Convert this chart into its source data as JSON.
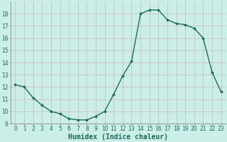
{
  "x": [
    0,
    1,
    2,
    3,
    4,
    5,
    6,
    7,
    8,
    9,
    10,
    11,
    12,
    13,
    14,
    15,
    16,
    17,
    18,
    19,
    20,
    21,
    22,
    23
  ],
  "y": [
    12.2,
    12.0,
    11.1,
    10.5,
    10.0,
    9.8,
    9.4,
    9.3,
    9.3,
    9.6,
    10.0,
    11.4,
    12.9,
    14.1,
    18.0,
    18.3,
    18.3,
    17.5,
    17.2,
    17.1,
    16.8,
    16.0,
    13.2,
    11.6
  ],
  "xlabel": "Humidex (Indice chaleur)",
  "ylabel": "",
  "xlim": [
    -0.5,
    23.5
  ],
  "ylim": [
    9,
    19
  ],
  "yticks": [
    9,
    10,
    11,
    12,
    13,
    14,
    15,
    16,
    17,
    18
  ],
  "xticks": [
    0,
    1,
    2,
    3,
    4,
    5,
    6,
    7,
    8,
    9,
    10,
    11,
    12,
    13,
    14,
    15,
    16,
    17,
    18,
    19,
    20,
    21,
    22,
    23
  ],
  "line_color": "#1a6b5a",
  "marker": "D",
  "marker_size": 2.0,
  "bg_color": "#cceee8",
  "grid_color": "#c8b8b8",
  "tick_label_fontsize": 5.5,
  "xlabel_fontsize": 7.0,
  "line_width": 1.0,
  "spine_color": "#888888"
}
